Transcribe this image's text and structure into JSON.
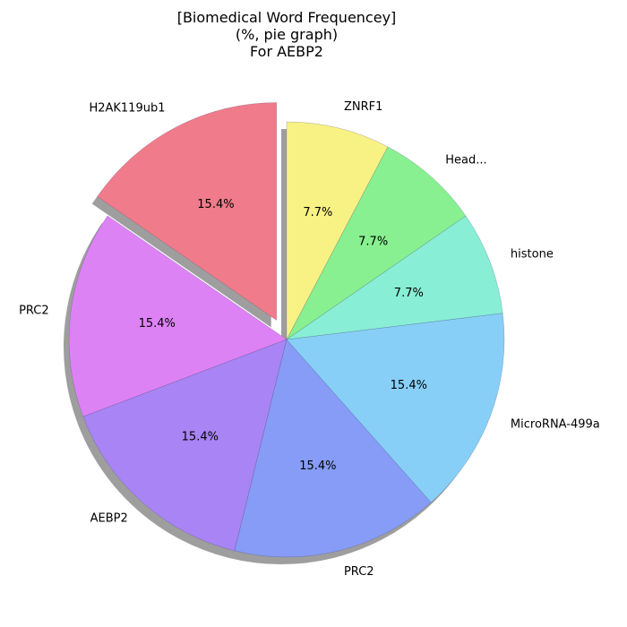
{
  "chart_data": {
    "type": "pie",
    "title_lines": [
      "[Biomedical Word Frequencey]",
      "(%, pie graph)",
      "For AEBP2"
    ],
    "labels": [
      "H2AK119ub1",
      "PRC2",
      "AEBP2",
      "PRC2",
      "MicroRNA-499a",
      "histone",
      "Head...",
      "ZNRF1"
    ],
    "values": [
      15.4,
      15.4,
      15.4,
      15.4,
      15.4,
      7.7,
      7.7,
      7.7
    ],
    "percent_labels": [
      "15.4%",
      "15.4%",
      "15.4%",
      "15.4%",
      "15.4%",
      "7.7%",
      "7.7%",
      "7.7%"
    ],
    "colors": [
      "#f07b8a",
      "#dd82f4",
      "#a884f4",
      "#869cf6",
      "#87cff7",
      "#88eed5",
      "#88f090",
      "#f8f285"
    ],
    "explode": [
      0.1,
      0,
      0,
      0,
      0,
      0,
      0,
      0
    ],
    "start_angle_deg": 90,
    "direction": "counterclockwise",
    "shadow": true
  }
}
